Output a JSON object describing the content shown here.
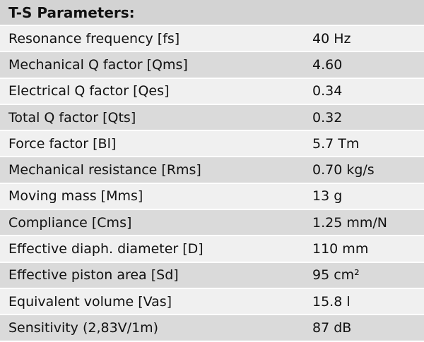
{
  "header": {
    "title": "T-S Parameters:"
  },
  "table": {
    "rows": [
      [
        "Resonance frequency [fs]",
        "40 Hz"
      ],
      [
        "Mechanical Q factor [Qms]",
        "4.60"
      ],
      [
        "Electrical Q factor [Qes]",
        "0.34"
      ],
      [
        "Total Q factor [Qts]",
        "0.32"
      ],
      [
        "Force factor [Bl]",
        "5.7 Tm"
      ],
      [
        "Mechanical resistance [Rms]",
        "0.70 kg/s"
      ],
      [
        "Moving mass [Mms]",
        "13 g"
      ],
      [
        "Compliance [Cms]",
        "1.25 mm/N"
      ],
      [
        "Effective diaph. diameter [D]",
        "110 mm"
      ],
      [
        "Effective piston area [Sd]",
        "95 cm²"
      ],
      [
        "Equivalent volume [Vas]",
        "15.8 l"
      ],
      [
        "Sensitivity (2,83V/1m)",
        "87 dB"
      ]
    ]
  }
}
